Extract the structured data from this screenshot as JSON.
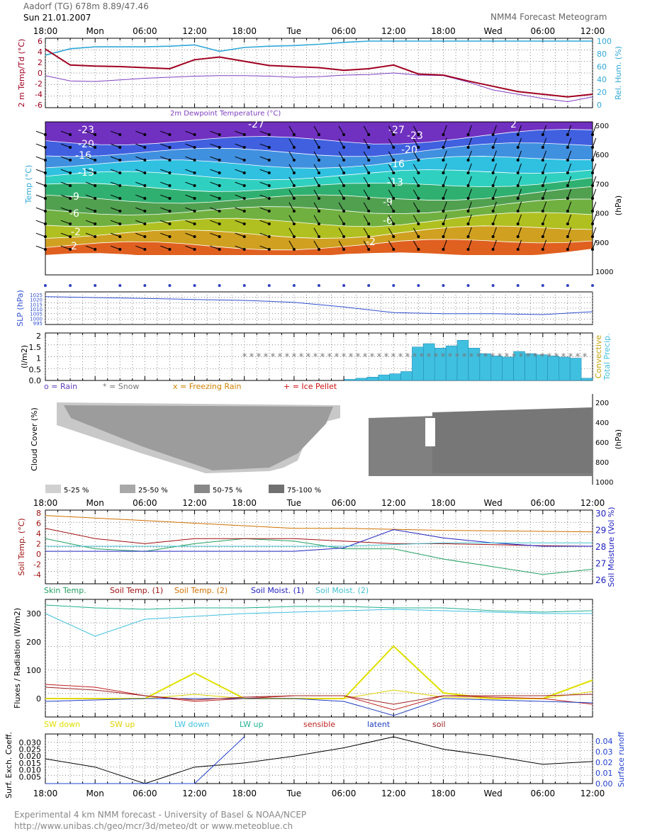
{
  "header": {
    "station": "Aadorf (TG)  678m 8.89/47.46",
    "date": "Sun 21.01.2007",
    "product": "NMM4 Forecast Meteogram"
  },
  "time_axis": {
    "labels": [
      "18:00",
      "Mon",
      "06:00",
      "12:00",
      "18:00",
      "Tue",
      "06:00",
      "12:00",
      "18:00",
      "Wed",
      "06:00",
      "12:00"
    ]
  },
  "footer": {
    "line1": "Experimental 4 km NMM forecast  - University of Basel & NOAA/NCEP",
    "line2": "http://www.unibas.ch/geo/mcr/3d/meteo/dt   or   www.meteoblue.ch"
  },
  "colors": {
    "temp": "#a00020",
    "dewpoint": "#8040c0",
    "humidity": "#30a8d8",
    "slp": "#3050d0",
    "precip": "#40c0e0",
    "snow": "#777777",
    "skin": "#20a060",
    "soil1": "#a01010",
    "soil2": "#d07000",
    "moist1": "#2020c0",
    "moist2": "#40c0d0",
    "sw_down": "#e0e000",
    "sw_up": "#e0d000",
    "lw_down": "#40c0e0",
    "lw_up": "#20b090",
    "sensible": "#c02020",
    "latent": "#2040c0",
    "soilflux": "#a02020",
    "exch": "#000000",
    "runoff": "#2040d0"
  },
  "panel_temp": {
    "y_label": "2 m Temp/Td (°C)",
    "y2_label": "Rel. Hum. (%)",
    "dewpoint_label": "2m Dewpoint Temperature (°C)",
    "yticks": [
      "6",
      "4",
      "2",
      "0",
      "-2",
      "-4",
      "-6"
    ],
    "y2ticks": [
      "100",
      "80",
      "60",
      "40",
      "20",
      "0"
    ]
  },
  "panel_upper": {
    "y_label": "Temp (°C)",
    "y2_label": "(hPa)",
    "y2ticks": [
      "500",
      "600",
      "700",
      "800",
      "900",
      "1000"
    ],
    "contour_labels": [
      "-23",
      "-20",
      "-16",
      "-13",
      "-9",
      "-6",
      "-2",
      "2",
      "-27",
      "-23",
      "-20",
      "-16",
      "-13",
      "-9",
      "-6",
      "-2",
      "2",
      "-27"
    ]
  },
  "panel_slp": {
    "y_label": "SLP (hPa)",
    "yticks": [
      "1025",
      "1020",
      "1015",
      "1010",
      "1005",
      "1000",
      "995"
    ]
  },
  "panel_precip": {
    "y_label": "(l/m2)",
    "y2_label_1": "Convective",
    "y2_label_2": "Total Precip.",
    "yticks": [
      "2",
      "1.5",
      "1",
      "0.5",
      "0.0"
    ],
    "legend": [
      "o = Rain",
      "* = Snow",
      "x = Freezing Rain",
      "+ = Ice Pellet"
    ]
  },
  "panel_cloud": {
    "y_label": "Cloud Cover (%)",
    "y2_label": "(hPa)",
    "y2ticks": [
      "200",
      "400",
      "600",
      "800",
      "1000"
    ],
    "legend": [
      "5-25 %",
      "25-50 %",
      "50-75 %",
      "75-100 %"
    ]
  },
  "panel_soil": {
    "y_label": "Soil Temp. (°C)",
    "y2_label": "Soil Moisture (Vol %)",
    "yticks": [
      "8",
      "6",
      "4",
      "2",
      "0",
      "-2",
      "-4"
    ],
    "y2ticks": [
      "30",
      "29",
      "28",
      "27",
      "26"
    ],
    "legend": [
      "Skin Temp.",
      "Soil Temp. (1)",
      "Soil Temp. (2)",
      "Soil Moist. (1)",
      "Soil Moist. (2)"
    ]
  },
  "panel_flux": {
    "y_label": "Fluxes / Radiation (W/m2)",
    "yticks": [
      "300",
      "200",
      "100",
      "0"
    ],
    "legend": [
      "SW down",
      "SW up",
      "LW down",
      "LW up",
      "sensible",
      "latent",
      "soil"
    ]
  },
  "panel_exch": {
    "y_label": "Surf. Exch. Coeff.",
    "y2_label": "Surface runoff",
    "yticks": [
      "0.030",
      "0.025",
      "0.020",
      "0.015",
      "0.010",
      "0.005"
    ],
    "y2ticks": [
      "0.04",
      "0.03",
      "0.02",
      "0.01",
      "0.00"
    ]
  },
  "chart_data": [
    {
      "type": "line",
      "title": "2 m Temp/Td",
      "x": [
        "18:00",
        "21:00",
        "Mon",
        "03:00",
        "06:00",
        "09:00",
        "12:00",
        "15:00",
        "18:00",
        "21:00",
        "Tue",
        "03:00",
        "06:00",
        "09:00",
        "12:00",
        "15:00",
        "18:00",
        "21:00",
        "Wed",
        "03:00",
        "06:00",
        "09:00",
        "12:00"
      ],
      "series": [
        {
          "name": "2 m Temp",
          "values": [
            4.5,
            1.5,
            1.3,
            1.2,
            1.0,
            0.8,
            2.5,
            3.0,
            2.2,
            1.4,
            1.2,
            1.0,
            0.5,
            0.8,
            1.5,
            -0.2,
            -0.4,
            -1.5,
            -2.5,
            -3.5,
            -4.0,
            -4.5,
            -4.0
          ]
        },
        {
          "name": "2m Dewpoint Temperature",
          "values": [
            -0.5,
            -1.5,
            -1.6,
            -1.3,
            -1.0,
            -0.8,
            -0.6,
            -0.5,
            -0.5,
            -0.6,
            -0.8,
            -0.7,
            -0.4,
            -0.3,
            0.0,
            -0.4,
            -0.5,
            -1.7,
            -3.2,
            -4.0,
            -4.8,
            -5.4,
            -4.5
          ]
        },
        {
          "name": "Rel. Hum.",
          "values": [
            78,
            88,
            91,
            91,
            91,
            92,
            94,
            84,
            90,
            92,
            93,
            95,
            98,
            100,
            100,
            100,
            100,
            100,
            100,
            100,
            100,
            100,
            100
          ]
        }
      ],
      "ylim": [
        -6,
        6
      ],
      "y2lim": [
        0,
        100
      ]
    },
    {
      "type": "line",
      "title": "SLP",
      "x": [
        "18:00",
        "Mon",
        "06:00",
        "12:00",
        "18:00",
        "Tue",
        "06:00",
        "12:00",
        "18:00",
        "Wed",
        "06:00",
        "12:00"
      ],
      "series": [
        {
          "name": "SLP",
          "values": [
            1023,
            1022,
            1021,
            1020,
            1019,
            1017,
            1012,
            1006,
            1005,
            1005,
            1004,
            1007
          ]
        }
      ],
      "ylim": [
        995,
        1025
      ]
    },
    {
      "type": "bar",
      "title": "Total Precip.",
      "x": [
        "18:00",
        "Mon",
        "06:00",
        "12:00",
        "18:00",
        "Tue",
        "03:00",
        "06:00",
        "07:30",
        "09:00",
        "10:30",
        "12:00",
        "13:30",
        "15:00",
        "16:30",
        "18:00",
        "19:30",
        "21:00",
        "22:30",
        "Wed",
        "01:30",
        "03:00",
        "04:30",
        "06:00",
        "07:30",
        "09:00",
        "10:30",
        "12:00"
      ],
      "values": [
        0,
        0,
        0,
        0,
        0,
        0,
        0.05,
        0.1,
        0.15,
        0.25,
        0.3,
        0.4,
        1.5,
        1.65,
        1.45,
        1.55,
        1.8,
        1.45,
        1.2,
        1.1,
        1.05,
        1.3,
        1.2,
        1.15,
        1.1,
        1.05,
        1.0,
        0.1
      ],
      "ylim": [
        0,
        2
      ]
    },
    {
      "type": "line",
      "title": "Soil",
      "x": [
        "18:00",
        "Mon",
        "06:00",
        "12:00",
        "18:00",
        "Tue",
        "06:00",
        "12:00",
        "18:00",
        "Wed",
        "06:00",
        "12:00"
      ],
      "series": [
        {
          "name": "Skin Temp.",
          "values": [
            3.0,
            1.0,
            0.5,
            2.0,
            3.0,
            2.5,
            1.0,
            1.0,
            -1.0,
            -2.5,
            -4.0,
            -3.0
          ]
        },
        {
          "name": "Soil Temp. (1)",
          "values": [
            5.0,
            3.0,
            2.0,
            3.0,
            3.0,
            3.0,
            2.5,
            2.0,
            2.0,
            1.8,
            1.6,
            1.5
          ]
        },
        {
          "name": "Soil Temp. (2)",
          "values": [
            7.5,
            7.0,
            6.5,
            6.0,
            5.5,
            5.0,
            5.0,
            4.8,
            4.6,
            4.5,
            4.4,
            4.3
          ]
        },
        {
          "name": "Soil Moist. (1)",
          "values": [
            27.7,
            27.7,
            27.7,
            27.7,
            27.7,
            27.7,
            27.9,
            29.0,
            28.5,
            28.2,
            28.0,
            28.0
          ]
        },
        {
          "name": "Soil Moist. (2)",
          "values": [
            28.0,
            28.0,
            28.0,
            28.0,
            28.0,
            28.0,
            28.0,
            28.1,
            28.2,
            28.2,
            28.2,
            28.2
          ]
        }
      ],
      "ylim": [
        -5,
        8
      ],
      "y2lim": [
        26,
        30
      ]
    },
    {
      "type": "line",
      "title": "Fluxes / Radiation",
      "x": [
        "18:00",
        "Mon",
        "06:00",
        "12:00",
        "18:00",
        "Tue",
        "06:00",
        "12:00",
        "18:00",
        "Wed",
        "06:00",
        "12:00"
      ],
      "series": [
        {
          "name": "SW down",
          "values": [
            0,
            0,
            0,
            90,
            0,
            0,
            0,
            185,
            20,
            0,
            0,
            65
          ]
        },
        {
          "name": "SW up",
          "values": [
            0,
            0,
            0,
            15,
            0,
            0,
            0,
            30,
            5,
            0,
            0,
            25
          ]
        },
        {
          "name": "LW down",
          "values": [
            300,
            220,
            280,
            290,
            300,
            305,
            310,
            315,
            310,
            305,
            300,
            300
          ]
        },
        {
          "name": "LW up",
          "values": [
            330,
            320,
            315,
            320,
            320,
            325,
            325,
            320,
            320,
            310,
            305,
            310
          ]
        },
        {
          "name": "sensible",
          "values": [
            50,
            40,
            10,
            -10,
            0,
            10,
            10,
            -40,
            10,
            5,
            0,
            -20
          ]
        },
        {
          "name": "latent",
          "values": [
            -10,
            -5,
            0,
            0,
            0,
            0,
            -10,
            -60,
            0,
            -5,
            -10,
            -15
          ]
        },
        {
          "name": "soil",
          "values": [
            40,
            30,
            10,
            -5,
            5,
            10,
            10,
            -20,
            10,
            10,
            10,
            15
          ]
        }
      ],
      "ylim": [
        -50,
        340
      ]
    },
    {
      "type": "line",
      "title": "Surf. Exch. Coeff.",
      "x": [
        "18:00",
        "Mon",
        "06:00",
        "12:00",
        "18:00",
        "Tue",
        "06:00",
        "12:00",
        "18:00",
        "Wed",
        "06:00",
        "12:00"
      ],
      "series": [
        {
          "name": "Surf. Exch. Coeff.",
          "values": [
            0.018,
            0.012,
            0.0,
            0.012,
            0.015,
            0.02,
            0.026,
            0.034,
            0.025,
            0.02,
            0.014,
            0.016
          ]
        },
        {
          "name": "Surface runoff",
          "values": [
            0,
            0,
            0,
            0,
            0.044,
            null,
            null,
            null,
            null,
            null,
            null,
            null
          ]
        }
      ],
      "ylim": [
        0,
        0.034
      ],
      "y2lim": [
        0,
        0.044
      ]
    }
  ]
}
